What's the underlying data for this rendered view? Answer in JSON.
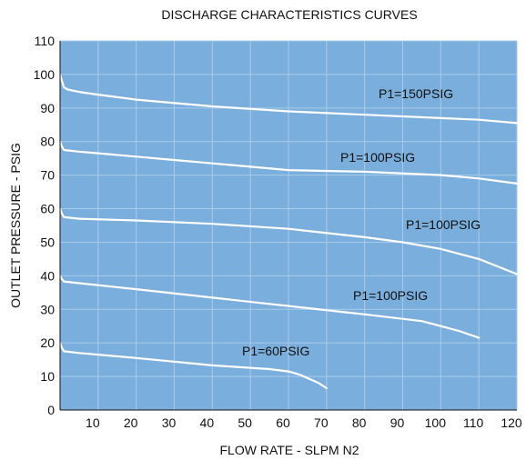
{
  "chart_data": {
    "type": "line",
    "title": "DISCHARGE CHARACTERISTICS CURVES",
    "xlabel": "FLOW RATE - SLPM N2",
    "ylabel": "OUTLET PRESSURE - PSIG",
    "xlim": [
      0,
      120
    ],
    "ylim": [
      0,
      110
    ],
    "xticks": [
      10,
      20,
      30,
      40,
      50,
      60,
      70,
      80,
      90,
      100,
      110,
      120
    ],
    "yticks": [
      0,
      10,
      20,
      30,
      40,
      50,
      60,
      70,
      80,
      90,
      100,
      110
    ],
    "grid": true,
    "legend": "none",
    "colors": {
      "plot_bg": "#7aaedc",
      "grid": "#a9cbea",
      "line": "#ffffff",
      "axis": "#111111"
    },
    "series": [
      {
        "name": "P1=150PSIG",
        "points": [
          [
            0,
            100
          ],
          [
            0.5,
            98
          ],
          [
            1,
            96.2
          ],
          [
            2,
            95.5
          ],
          [
            5,
            94.8
          ],
          [
            10,
            94
          ],
          [
            20,
            92.5
          ],
          [
            40,
            90.5
          ],
          [
            60,
            89
          ],
          [
            80,
            88
          ],
          [
            100,
            87
          ],
          [
            110,
            86.5
          ],
          [
            120,
            85.5
          ]
        ]
      },
      {
        "name": "P1=100PSIG",
        "points": [
          [
            0,
            80
          ],
          [
            0.5,
            78.5
          ],
          [
            1,
            77.5
          ],
          [
            5,
            77
          ],
          [
            10,
            76.5
          ],
          [
            20,
            75.5
          ],
          [
            30,
            74.5
          ],
          [
            40,
            73.5
          ],
          [
            50,
            72.5
          ],
          [
            60,
            71.5
          ],
          [
            80,
            71
          ],
          [
            100,
            70
          ],
          [
            110,
            69
          ],
          [
            120,
            67.5
          ]
        ]
      },
      {
        "name": "P1=100PSIG",
        "points": [
          [
            0,
            60
          ],
          [
            0.5,
            58.5
          ],
          [
            1,
            57.5
          ],
          [
            5,
            57
          ],
          [
            20,
            56.5
          ],
          [
            40,
            55.5
          ],
          [
            60,
            54
          ],
          [
            80,
            51.5
          ],
          [
            90,
            50
          ],
          [
            100,
            48
          ],
          [
            110,
            45
          ],
          [
            120,
            40.5
          ]
        ]
      },
      {
        "name": "P1=100PSIG",
        "points": [
          [
            0,
            40
          ],
          [
            0.5,
            39
          ],
          [
            1,
            38.3
          ],
          [
            5,
            37.8
          ],
          [
            20,
            36
          ],
          [
            40,
            33.5
          ],
          [
            60,
            31
          ],
          [
            80,
            28.5
          ],
          [
            95,
            26.5
          ],
          [
            100,
            25
          ],
          [
            105,
            23.5
          ],
          [
            110,
            21.5
          ]
        ]
      },
      {
        "name": "P1=60PSIG",
        "points": [
          [
            0,
            20
          ],
          [
            0.5,
            18.5
          ],
          [
            1,
            17.5
          ],
          [
            5,
            17
          ],
          [
            20,
            15.5
          ],
          [
            40,
            13.3
          ],
          [
            55,
            12.2
          ],
          [
            60,
            11.5
          ],
          [
            63,
            10.5
          ],
          [
            66,
            9
          ],
          [
            68,
            8
          ],
          [
            70,
            6.5
          ]
        ]
      }
    ]
  }
}
